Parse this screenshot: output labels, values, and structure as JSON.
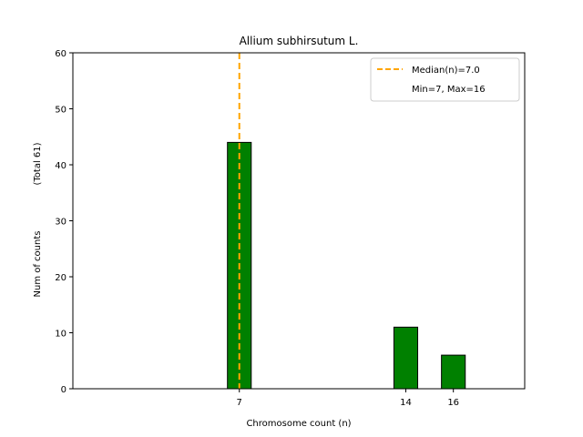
{
  "chart_data": {
    "type": "bar",
    "title": "Allium subhirsutum L.",
    "xlabel": "Chromosome count (n)",
    "ylabel": "Num of counts",
    "ylabel_total": "(Total 61)",
    "x": [
      7,
      14,
      16
    ],
    "values": [
      44,
      11,
      6
    ],
    "xlim": [
      0,
      19
    ],
    "ylim": [
      0,
      60
    ],
    "yticks": [
      0,
      10,
      20,
      30,
      40,
      50,
      60
    ],
    "xticks": [
      7,
      14,
      16
    ],
    "bar_color": "#008000",
    "bar_edge_color": "#000000",
    "median_line": {
      "x": 7,
      "color": "#FFA500",
      "label": "Median(n)=7.0"
    },
    "legend": {
      "placement": "upper-right",
      "entries": [
        "Median(n)=7.0",
        "Min=7, Max=16"
      ]
    },
    "grid": false
  }
}
